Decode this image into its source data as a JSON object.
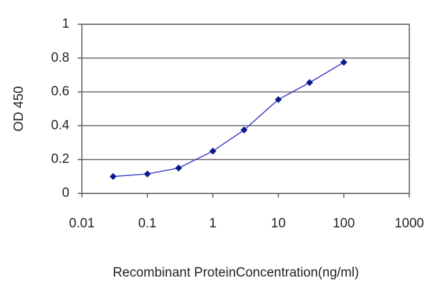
{
  "chart_data": {
    "type": "line",
    "x_label": "Recombinant ProteinConcentration(ng/ml)",
    "y_label": "OD 450",
    "x": [
      0.03,
      0.1,
      0.3,
      1,
      3,
      10,
      30,
      100
    ],
    "values": [
      0.1,
      0.115,
      0.15,
      0.25,
      0.375,
      0.555,
      0.655,
      0.775
    ],
    "color": "#3c3cc8",
    "marker_color": "#0a1a8c",
    "xscale": "log",
    "xlim": [
      0.01,
      1000
    ],
    "xticks": [
      0.01,
      0.1,
      1,
      10,
      100,
      1000
    ],
    "ylim": [
      0,
      1
    ],
    "yticks": [
      0,
      0.2,
      0.4,
      0.6,
      0.8,
      1
    ],
    "grid": true
  }
}
